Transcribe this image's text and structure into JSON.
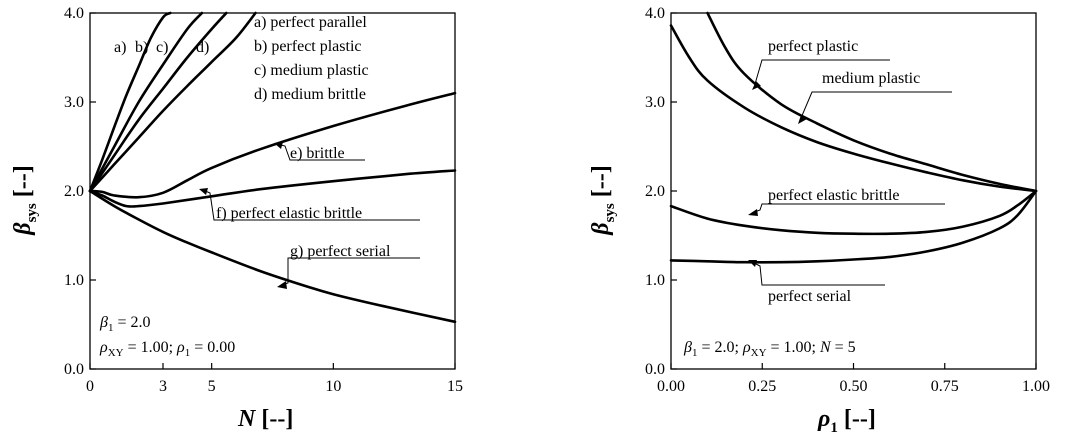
{
  "chart_data": [
    {
      "type": "line",
      "xlabel": "N [--]",
      "ylabel": "β_sys [--]",
      "xlim": [
        0,
        15
      ],
      "ylim": [
        0,
        4
      ],
      "xticks": [
        "0",
        "3",
        "5",
        "10",
        "15"
      ],
      "yticks": [
        "0.0",
        "1.0",
        "2.0",
        "3.0",
        "4.0"
      ],
      "grid": false,
      "legend": [
        "a) perfect parallel",
        "b) perfect plastic",
        "c) medium plastic",
        "d) medium brittle"
      ],
      "curve_tags": [
        "a)",
        "b)",
        "c)",
        "d)"
      ],
      "params_text": [
        "β1 = 2.0",
        "ρXY = 1.00; ρ1 = 0.00"
      ],
      "series": [
        {
          "name": "a) perfect parallel",
          "x": [
            0,
            0.5,
            1,
            1.5,
            2,
            2.5,
            3,
            3.3
          ],
          "y": [
            2.0,
            2.35,
            2.72,
            3.08,
            3.4,
            3.72,
            3.95,
            4.0
          ]
        },
        {
          "name": "b) perfect plastic",
          "x": [
            0,
            1,
            2,
            3,
            4,
            4.6
          ],
          "y": [
            2.0,
            2.5,
            3.0,
            3.42,
            3.82,
            4.0
          ]
        },
        {
          "name": "c) medium plastic",
          "x": [
            0,
            1,
            2,
            3,
            4,
            5,
            5.6
          ],
          "y": [
            2.0,
            2.4,
            2.8,
            3.15,
            3.5,
            3.82,
            4.0
          ]
        },
        {
          "name": "d) medium brittle",
          "x": [
            0,
            1,
            2,
            3,
            4,
            5,
            6,
            6.8
          ],
          "y": [
            2.0,
            2.3,
            2.6,
            2.9,
            3.18,
            3.45,
            3.72,
            4.0
          ]
        },
        {
          "name": "e) brittle",
          "x": [
            0,
            0.5,
            1,
            2,
            3,
            4,
            5,
            7,
            10,
            13,
            15
          ],
          "y": [
            2.0,
            1.99,
            1.95,
            1.93,
            1.98,
            2.12,
            2.26,
            2.47,
            2.73,
            2.96,
            3.1
          ]
        },
        {
          "name": "f) perfect elastic brittle",
          "x": [
            0,
            0.5,
            1,
            1.5,
            2,
            3,
            5,
            7,
            10,
            13,
            15
          ],
          "y": [
            2.0,
            1.95,
            1.88,
            1.83,
            1.83,
            1.86,
            1.94,
            2.02,
            2.11,
            2.19,
            2.23
          ]
        },
        {
          "name": "g) perfect serial",
          "x": [
            0,
            1,
            2,
            3,
            4,
            5,
            7,
            9,
            10,
            12,
            15
          ],
          "y": [
            2.0,
            1.83,
            1.68,
            1.54,
            1.42,
            1.31,
            1.1,
            0.92,
            0.84,
            0.71,
            0.53
          ]
        }
      ]
    },
    {
      "type": "line",
      "xlabel": "ρ1 [--]",
      "ylabel": "β_sys [--]",
      "xlim": [
        0,
        1
      ],
      "ylim": [
        0,
        4
      ],
      "xticks": [
        "0.00",
        "0.25",
        "0.50",
        "0.75",
        "1.00"
      ],
      "yticks": [
        "0.0",
        "1.0",
        "2.0",
        "3.0",
        "4.0"
      ],
      "grid": false,
      "params_text": [
        "β1 = 2.0; ρXY = 1.00; N = 5"
      ],
      "series": [
        {
          "name": "perfect plastic",
          "x": [
            0.1,
            0.15,
            0.2,
            0.3,
            0.4,
            0.5,
            0.6,
            0.7,
            0.8,
            0.9,
            1.0
          ],
          "y": [
            4.0,
            3.6,
            3.32,
            2.98,
            2.76,
            2.57,
            2.42,
            2.3,
            2.18,
            2.08,
            2.0
          ],
          "label_anchor": [
            0.26,
            3.2
          ]
        },
        {
          "name": "medium plastic",
          "x": [
            0,
            0.05,
            0.1,
            0.2,
            0.3,
            0.4,
            0.5,
            0.6,
            0.7,
            0.8,
            0.9,
            1.0
          ],
          "y": [
            3.86,
            3.5,
            3.24,
            2.94,
            2.72,
            2.55,
            2.42,
            2.31,
            2.21,
            2.12,
            2.05,
            2.0
          ],
          "label_anchor": [
            0.4,
            2.65
          ]
        },
        {
          "name": "perfect elastic brittle",
          "x": [
            0,
            0.1,
            0.2,
            0.3,
            0.4,
            0.5,
            0.6,
            0.7,
            0.8,
            0.9,
            0.95,
            1.0
          ],
          "y": [
            1.83,
            1.69,
            1.61,
            1.56,
            1.53,
            1.52,
            1.52,
            1.54,
            1.6,
            1.72,
            1.84,
            2.0
          ],
          "label_anchor": [
            0.33,
            1.59
          ]
        },
        {
          "name": "perfect serial",
          "x": [
            0,
            0.1,
            0.2,
            0.3,
            0.4,
            0.5,
            0.6,
            0.7,
            0.8,
            0.9,
            0.95,
            1.0
          ],
          "y": [
            1.22,
            1.21,
            1.2,
            1.2,
            1.21,
            1.23,
            1.26,
            1.32,
            1.42,
            1.58,
            1.73,
            2.0
          ],
          "label_anchor": [
            0.29,
            1.2
          ]
        }
      ]
    }
  ],
  "text": {
    "left_labels": {
      "a_legend": "a) perfect parallel",
      "b_legend": "b) perfect plastic",
      "c_legend": "c) medium plastic",
      "d_legend": "d) medium brittle",
      "e": "e) brittle",
      "f": "f) perfect elastic brittle",
      "g": "g) perfect serial"
    },
    "right_labels": {
      "pp": "perfect plastic",
      "mp": "medium plastic",
      "peb": "perfect elastic brittle",
      "ps": "perfect serial"
    }
  }
}
